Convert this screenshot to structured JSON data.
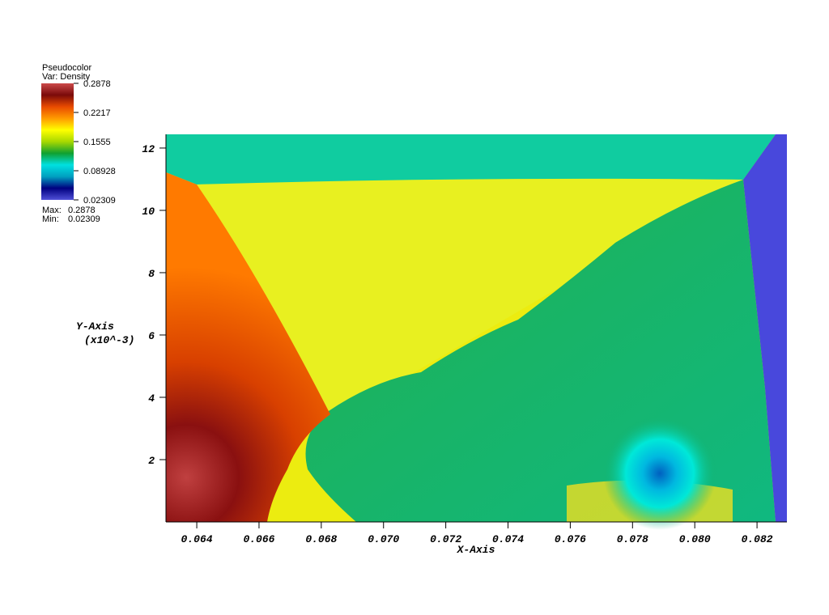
{
  "chart_data": {
    "type": "pseudocolor",
    "xlim": [
      0.06301,
      0.08296
    ],
    "ylim": [
      0,
      12.44
    ],
    "xticks": [
      {
        "value": 0.064,
        "label": "0.064"
      },
      {
        "value": 0.066,
        "label": "0.066"
      },
      {
        "value": 0.068,
        "label": "0.068"
      },
      {
        "value": 0.07,
        "label": "0.070"
      },
      {
        "value": 0.072,
        "label": "0.072"
      },
      {
        "value": 0.074,
        "label": "0.074"
      },
      {
        "value": 0.076,
        "label": "0.076"
      },
      {
        "value": 0.078,
        "label": "0.078"
      },
      {
        "value": 0.08,
        "label": "0.080"
      },
      {
        "value": 0.082,
        "label": "0.082"
      }
    ],
    "yticks": [
      2,
      4,
      6,
      8,
      10,
      12
    ],
    "x_label": "X-Axis",
    "y_label": "Y-Axis",
    "y_label_unit": "(x10^-3)",
    "legend": {
      "title": "Pseudocolor",
      "variable": "Var: Density",
      "lim": [
        0.02309,
        0.2878
      ],
      "ticks": [
        0.2878,
        0.2217,
        0.1555,
        0.08928,
        0.02309
      ],
      "max_label": "Max:",
      "max": 0.2878,
      "min_label": "Min:",
      "min": 0.02309,
      "colormap": [
        "#cc4a4a",
        "#7a0a0a",
        "#e84a00",
        "#ff9a00",
        "#ffff00",
        "#a8d800",
        "#10a030",
        "#00e0e0",
        "#00a0c0",
        "#000080",
        "#5050d8"
      ]
    }
  }
}
